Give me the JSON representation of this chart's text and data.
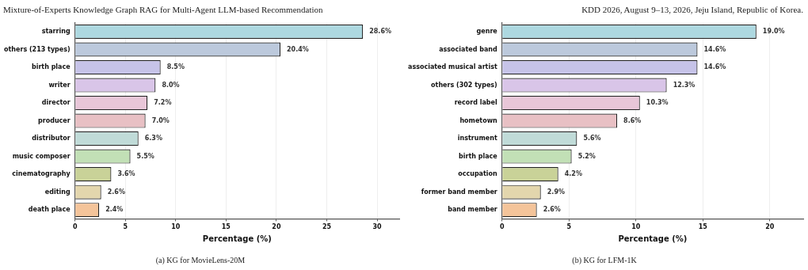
{
  "chart_data": [
    {
      "type": "bar",
      "orientation": "horizontal",
      "title": "(a) KG for MovieLens-20M",
      "xlabel": "Percentage (%)",
      "annotations": [
        "Mixture-of-Experts Knowledge Graph RAG for Multi-Agent LLM-based Recommendation"
      ],
      "categories": [
        "starring",
        "others (213 types)",
        "birth place",
        "writer",
        "director",
        "producer",
        "distributor",
        "music composer",
        "cinematography",
        "editing",
        "death place"
      ],
      "values": [
        28.6,
        20.4,
        8.5,
        8.0,
        7.2,
        7.0,
        6.3,
        5.5,
        3.6,
        2.6,
        2.4
      ],
      "colors": [
        "#add8e0",
        "#bcc9dc",
        "#c6c3e8",
        "#d9c5e8",
        "#e8c6d8",
        "#e8c0c4",
        "#c0dbd8",
        "#c2e0b6",
        "#c9d298",
        "#e3d6ad",
        "#f4c49a"
      ],
      "value_labels": [
        "28.6%",
        "20.4%",
        "8.5%",
        "8.0%",
        "7.2%",
        "7.0%",
        "6.3%",
        "5.5%",
        "3.6%",
        "2.6%",
        "2.4%"
      ],
      "xlim": [
        0,
        32.2
      ],
      "xticks": [
        0,
        5,
        10,
        15,
        20,
        25,
        30
      ],
      "grid": "x",
      "legend": false
    },
    {
      "type": "bar",
      "orientation": "horizontal",
      "title": "(b) KG for LFM-1K",
      "xlabel": "Percentage (%)",
      "annotations": [
        "KDD 2026, August 9–13, 2026, Jeju Island, Republic of Korea."
      ],
      "categories": [
        "genre",
        "associated band",
        "associated musical artist",
        "others (302 types)",
        "record label",
        "hometown",
        "instrument",
        "birth place",
        "occupation",
        "former band member",
        "band member"
      ],
      "values": [
        19.0,
        14.6,
        14.6,
        12.3,
        10.3,
        8.6,
        5.6,
        5.2,
        4.2,
        2.9,
        2.6
      ],
      "colors": [
        "#add8e0",
        "#bcc9dc",
        "#c6c3e8",
        "#d9c5e8",
        "#e8c6d8",
        "#e8c0c4",
        "#c0dbd8",
        "#c2e0b6",
        "#c9d298",
        "#e3d6ad",
        "#f4c49a"
      ],
      "value_labels": [
        "19.0%",
        "14.6%",
        "14.6%",
        "12.3%",
        "10.3%",
        "8.6%",
        "5.6%",
        "5.2%",
        "4.2%",
        "2.9%",
        "2.6%"
      ],
      "xlim": [
        0,
        22.5
      ],
      "xticks": [
        0,
        5,
        10,
        15,
        20
      ],
      "grid": "x",
      "legend": false
    }
  ]
}
